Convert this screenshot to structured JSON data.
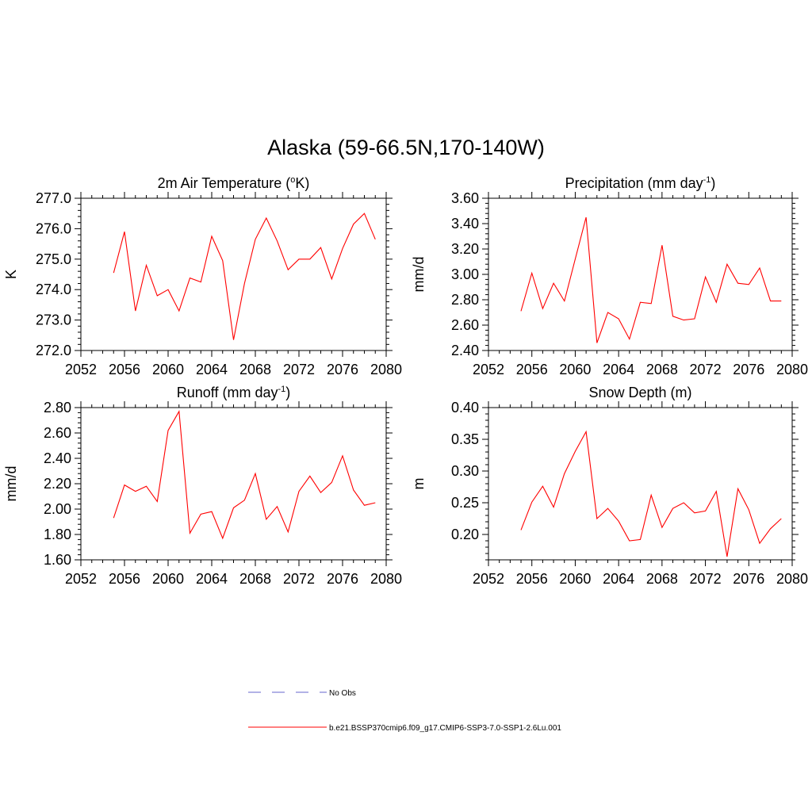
{
  "figure_title": "Alaska (59-66.5N,170-140W)",
  "legend": {
    "obs_label": "No Obs",
    "model_label": "b.e21.BSSP370cmip6.f09_g17.CMIP6-SSP3-7.0-SSP1-2.6Lu.001"
  },
  "colors": {
    "model": "#ff0000",
    "obs": "#9999dd"
  },
  "chart_data": [
    {
      "type": "line",
      "title_main": "2m Air Temperature (",
      "title_sup": "o",
      "title_rest": "K)",
      "ylabel": "K",
      "xlim": [
        2052,
        2080
      ],
      "xticks": [
        "2052",
        "2056",
        "2060",
        "2064",
        "2068",
        "2072",
        "2076",
        "2080"
      ],
      "ylim": [
        272.0,
        277.0
      ],
      "yticks": [
        "272.0",
        "273.0",
        "274.0",
        "275.0",
        "276.0",
        "277.0"
      ],
      "x": [
        2055,
        2056,
        2057,
        2058,
        2059,
        2060,
        2061,
        2062,
        2063,
        2064,
        2065,
        2066,
        2067,
        2068,
        2069,
        2070,
        2071,
        2072,
        2073,
        2074,
        2075,
        2076,
        2077,
        2078,
        2079
      ],
      "y": [
        274.55,
        275.9,
        273.3,
        274.8,
        273.8,
        274.0,
        273.3,
        274.38,
        274.25,
        275.75,
        274.95,
        272.35,
        274.2,
        275.65,
        276.35,
        275.6,
        274.65,
        275.0,
        275.0,
        275.38,
        274.35,
        275.35,
        276.15,
        276.5,
        275.65
      ]
    },
    {
      "type": "line",
      "title_main": "Precipitation (mm day",
      "title_sup": "-1",
      "title_rest": ")",
      "ylabel": "mm/d",
      "xlim": [
        2052,
        2080
      ],
      "xticks": [
        "2052",
        "2056",
        "2060",
        "2064",
        "2068",
        "2072",
        "2076",
        "2080"
      ],
      "ylim": [
        2.4,
        3.6
      ],
      "yticks": [
        "2.40",
        "2.60",
        "2.80",
        "3.00",
        "3.20",
        "3.40",
        "3.60"
      ],
      "x": [
        2055,
        2056,
        2057,
        2058,
        2059,
        2060,
        2061,
        2062,
        2063,
        2064,
        2065,
        2066,
        2067,
        2068,
        2069,
        2070,
        2071,
        2072,
        2073,
        2074,
        2075,
        2076,
        2077,
        2078,
        2079
      ],
      "y": [
        2.71,
        3.01,
        2.73,
        2.93,
        2.79,
        3.12,
        3.45,
        2.46,
        2.7,
        2.65,
        2.49,
        2.78,
        2.77,
        3.23,
        2.67,
        2.64,
        2.65,
        2.98,
        2.78,
        3.08,
        2.93,
        2.92,
        3.05,
        2.79,
        2.79
      ]
    },
    {
      "type": "line",
      "title_main": "Runoff (mm day",
      "title_sup": "-1",
      "title_rest": ")",
      "ylabel": "mm/d",
      "xlim": [
        2052,
        2080
      ],
      "xticks": [
        "2052",
        "2056",
        "2060",
        "2064",
        "2068",
        "2072",
        "2076",
        "2080"
      ],
      "ylim": [
        1.6,
        2.8
      ],
      "yticks": [
        "1.60",
        "1.80",
        "2.00",
        "2.20",
        "2.40",
        "2.60",
        "2.80"
      ],
      "x": [
        2055,
        2056,
        2057,
        2058,
        2059,
        2060,
        2061,
        2062,
        2063,
        2064,
        2065,
        2066,
        2067,
        2068,
        2069,
        2070,
        2071,
        2072,
        2073,
        2074,
        2075,
        2076,
        2077,
        2078,
        2079
      ],
      "y": [
        1.93,
        2.19,
        2.14,
        2.18,
        2.06,
        2.62,
        2.77,
        1.81,
        1.96,
        1.98,
        1.77,
        2.01,
        2.07,
        2.28,
        1.92,
        2.02,
        1.82,
        2.14,
        2.26,
        2.13,
        2.21,
        2.42,
        2.15,
        2.03,
        2.05
      ]
    },
    {
      "type": "line",
      "title_main": "Snow Depth (m)",
      "title_sup": "",
      "title_rest": "",
      "ylabel": "m",
      "xlim": [
        2052,
        2080
      ],
      "xticks": [
        "2052",
        "2056",
        "2060",
        "2064",
        "2068",
        "2072",
        "2076",
        "2080"
      ],
      "ylim": [
        0.16,
        0.4
      ],
      "yticks": [
        "0.20",
        "0.25",
        "0.30",
        "0.35",
        "0.40"
      ],
      "ytick_values": [
        0.2,
        0.25,
        0.3,
        0.35,
        0.4
      ],
      "x": [
        2055,
        2056,
        2057,
        2058,
        2059,
        2060,
        2061,
        2062,
        2063,
        2064,
        2065,
        2066,
        2067,
        2068,
        2069,
        2070,
        2071,
        2072,
        2073,
        2074,
        2075,
        2076,
        2077,
        2078,
        2079
      ],
      "y": [
        0.207,
        0.251,
        0.276,
        0.243,
        0.296,
        0.331,
        0.362,
        0.225,
        0.241,
        0.221,
        0.19,
        0.192,
        0.262,
        0.211,
        0.241,
        0.25,
        0.234,
        0.237,
        0.268,
        0.165,
        0.272,
        0.239,
        0.186,
        0.209,
        0.225
      ]
    }
  ]
}
